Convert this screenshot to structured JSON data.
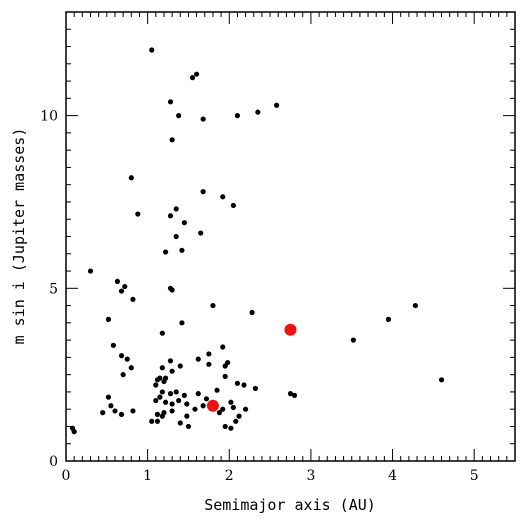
{
  "chart_data": {
    "type": "scatter",
    "title": "",
    "xlabel": "Semimajor axis (AU)",
    "ylabel": "m sin i (Jupiter masses)",
    "xlim": [
      0,
      5.5
    ],
    "ylim": [
      0,
      13
    ],
    "x_ticks": [
      0,
      1,
      2,
      3,
      4,
      5
    ],
    "y_ticks": [
      0,
      5,
      10
    ],
    "x_tick_labels": [
      "0",
      "1",
      "2",
      "3",
      "4",
      "5"
    ],
    "y_tick_labels": [
      "0",
      "5",
      "10"
    ],
    "grid": false,
    "series": [
      {
        "color": "#000000",
        "marker_size": "small",
        "points": [
          [
            1.05,
            11.9
          ],
          [
            1.6,
            11.2
          ],
          [
            1.55,
            11.1
          ],
          [
            1.28,
            10.4
          ],
          [
            1.38,
            10.0
          ],
          [
            1.68,
            9.9
          ],
          [
            2.1,
            10.0
          ],
          [
            2.35,
            10.1
          ],
          [
            2.58,
            10.3
          ],
          [
            1.3,
            9.3
          ],
          [
            0.8,
            8.2
          ],
          [
            1.68,
            7.8
          ],
          [
            1.92,
            7.65
          ],
          [
            2.05,
            7.4
          ],
          [
            0.88,
            7.15
          ],
          [
            1.28,
            7.1
          ],
          [
            1.35,
            7.3
          ],
          [
            1.45,
            6.9
          ],
          [
            1.65,
            6.6
          ],
          [
            1.35,
            6.5
          ],
          [
            1.42,
            6.1
          ],
          [
            1.22,
            6.05
          ],
          [
            0.3,
            5.5
          ],
          [
            0.63,
            5.2
          ],
          [
            0.72,
            5.05
          ],
          [
            0.68,
            4.92
          ],
          [
            1.28,
            5.0
          ],
          [
            1.3,
            4.95
          ],
          [
            0.82,
            4.68
          ],
          [
            1.8,
            4.5
          ],
          [
            2.28,
            4.3
          ],
          [
            0.52,
            4.1
          ],
          [
            1.42,
            4.0
          ],
          [
            1.18,
            3.7
          ],
          [
            0.58,
            3.35
          ],
          [
            1.92,
            3.3
          ],
          [
            0.68,
            3.05
          ],
          [
            0.75,
            2.95
          ],
          [
            1.75,
            3.1
          ],
          [
            1.62,
            2.95
          ],
          [
            0.8,
            2.7
          ],
          [
            0.7,
            2.5
          ],
          [
            1.18,
            2.7
          ],
          [
            1.28,
            2.9
          ],
          [
            1.3,
            2.6
          ],
          [
            1.4,
            2.75
          ],
          [
            1.75,
            2.8
          ],
          [
            1.95,
            2.75
          ],
          [
            1.98,
            2.85
          ],
          [
            1.1,
            2.2
          ],
          [
            1.12,
            2.35
          ],
          [
            1.15,
            2.4
          ],
          [
            1.2,
            2.3
          ],
          [
            1.22,
            2.4
          ],
          [
            1.95,
            2.45
          ],
          [
            2.1,
            2.25
          ],
          [
            2.18,
            2.2
          ],
          [
            2.32,
            2.1
          ],
          [
            1.18,
            2.0
          ],
          [
            1.28,
            1.95
          ],
          [
            1.35,
            2.0
          ],
          [
            1.45,
            1.9
          ],
          [
            1.62,
            1.95
          ],
          [
            1.72,
            1.8
          ],
          [
            1.85,
            2.05
          ],
          [
            2.02,
            1.7
          ],
          [
            2.75,
            1.95
          ],
          [
            2.8,
            1.9
          ],
          [
            0.52,
            1.85
          ],
          [
            0.55,
            1.6
          ],
          [
            1.1,
            1.75
          ],
          [
            1.15,
            1.85
          ],
          [
            1.22,
            1.7
          ],
          [
            1.3,
            1.65
          ],
          [
            1.38,
            1.75
          ],
          [
            1.48,
            1.65
          ],
          [
            1.58,
            1.5
          ],
          [
            1.68,
            1.6
          ],
          [
            1.78,
            1.55
          ],
          [
            1.92,
            1.5
          ],
          [
            2.05,
            1.55
          ],
          [
            2.2,
            1.5
          ],
          [
            0.45,
            1.4
          ],
          [
            0.6,
            1.45
          ],
          [
            0.68,
            1.35
          ],
          [
            0.82,
            1.45
          ],
          [
            1.12,
            1.35
          ],
          [
            1.2,
            1.4
          ],
          [
            1.3,
            1.45
          ],
          [
            1.48,
            1.3
          ],
          [
            1.88,
            1.4
          ],
          [
            1.05,
            1.15
          ],
          [
            1.12,
            1.15
          ],
          [
            1.18,
            1.3
          ],
          [
            1.4,
            1.1
          ],
          [
            1.5,
            1.0
          ],
          [
            1.95,
            1.0
          ],
          [
            2.02,
            0.95
          ],
          [
            2.08,
            1.15
          ],
          [
            2.12,
            1.3
          ],
          [
            0.08,
            0.95
          ],
          [
            0.1,
            0.85
          ],
          [
            3.52,
            3.5
          ],
          [
            3.95,
            4.1
          ],
          [
            4.28,
            4.5
          ],
          [
            4.6,
            2.35
          ]
        ]
      },
      {
        "color": "#ee1111",
        "marker_size": "large",
        "points": [
          [
            1.8,
            1.6
          ],
          [
            2.75,
            3.8
          ]
        ]
      }
    ]
  }
}
